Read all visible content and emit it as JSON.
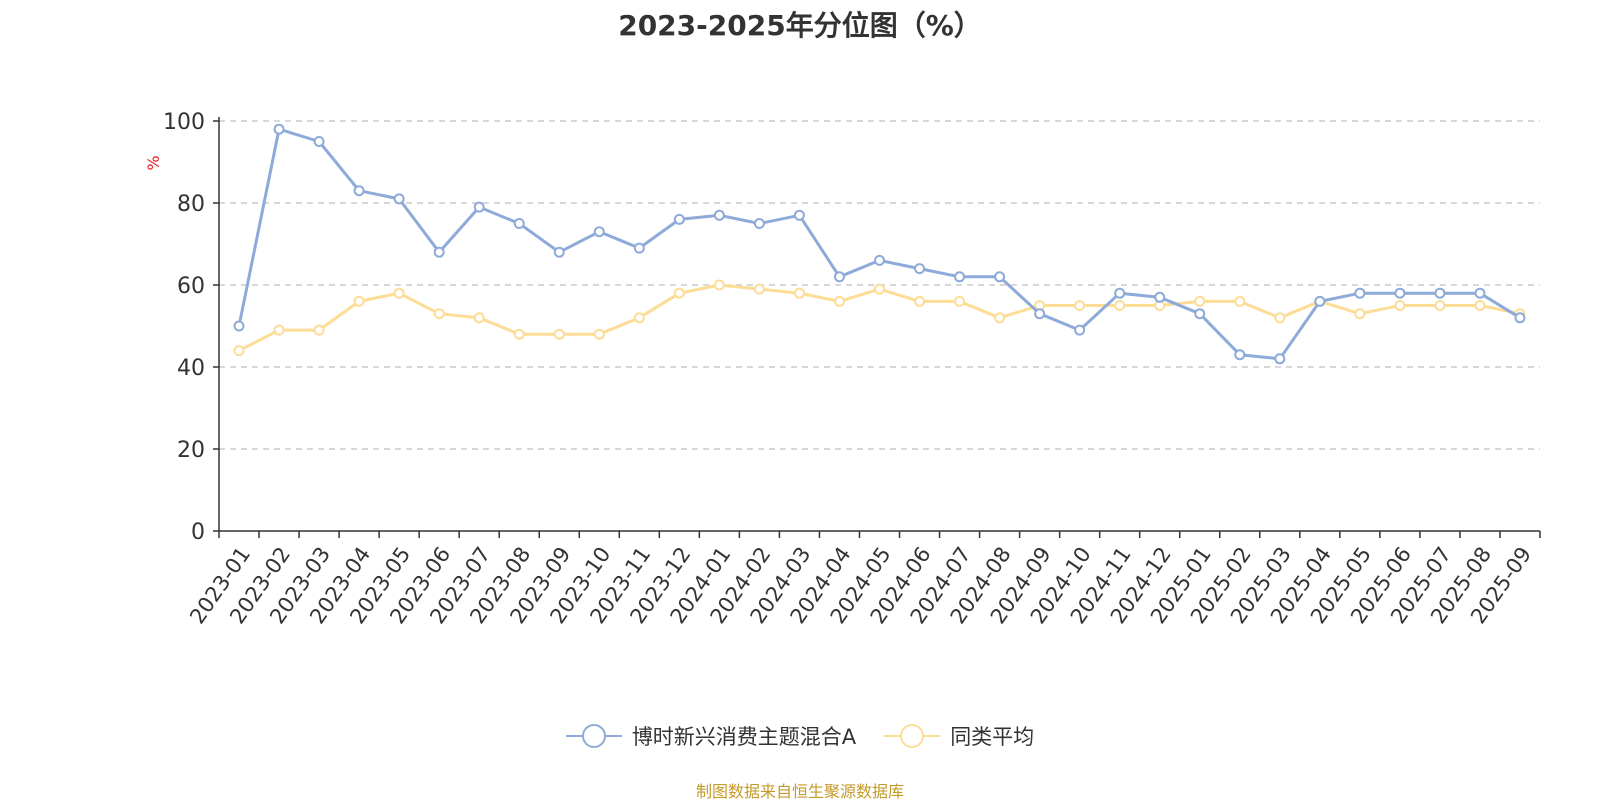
{
  "chart_data": {
    "type": "line",
    "title": "2023-2025年分位图（%）",
    "ylabel": "%",
    "xlabel": "",
    "ylim": [
      0,
      100
    ],
    "yticks": [
      0,
      20,
      40,
      60,
      80,
      100
    ],
    "grid": true,
    "legend_position": "bottom-center",
    "categories": [
      "2023-01",
      "2023-02",
      "2023-03",
      "2023-04",
      "2023-05",
      "2023-06",
      "2023-07",
      "2023-08",
      "2023-09",
      "2023-10",
      "2023-11",
      "2023-12",
      "2024-01",
      "2024-02",
      "2024-03",
      "2024-04",
      "2024-05",
      "2024-06",
      "2024-07",
      "2024-08",
      "2024-09",
      "2024-10",
      "2024-11",
      "2024-12",
      "2025-01",
      "2025-02",
      "2025-03",
      "2025-04",
      "2025-05",
      "2025-06",
      "2025-07",
      "2025-08",
      "2025-09"
    ],
    "series": [
      {
        "name": "博时新兴消费主题混合A",
        "color": "#8eaad8",
        "values": [
          50,
          98,
          95,
          83,
          81,
          68,
          79,
          75,
          68,
          73,
          69,
          76,
          77,
          75,
          77,
          62,
          66,
          64,
          62,
          62,
          53,
          49,
          58,
          57,
          53,
          43,
          42,
          56,
          58,
          58,
          58,
          58,
          52
        ]
      },
      {
        "name": "同类平均",
        "color": "#fddc96",
        "values": [
          44,
          49,
          49,
          56,
          58,
          53,
          52,
          48,
          48,
          48,
          52,
          58,
          60,
          59,
          58,
          56,
          59,
          56,
          56,
          52,
          55,
          55,
          55,
          55,
          56,
          56,
          52,
          56,
          53,
          55,
          55,
          55,
          53
        ]
      }
    ],
    "source_note": "制图数据来自恒生聚源数据库"
  }
}
